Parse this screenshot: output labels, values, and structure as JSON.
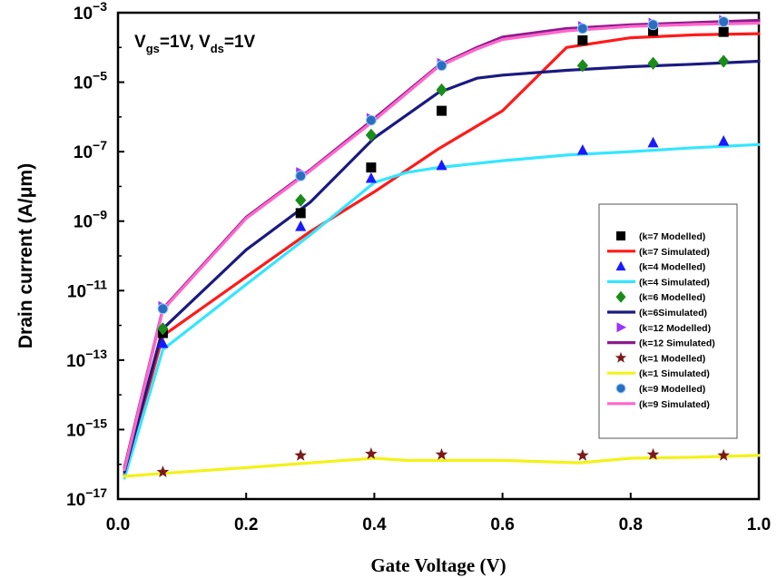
{
  "chart_data": {
    "type": "line",
    "annotation": {
      "part1": "V",
      "sub1": "gs",
      "part2": "=1V, V",
      "sub2": "ds",
      "part3": "=1V"
    },
    "xlabel": "Gate Voltage (V)",
    "ylabel": "Drain current (A/μm)",
    "xlim": [
      0.0,
      1.0
    ],
    "ylim_log10": [
      -17,
      -3
    ],
    "y_scale": "log",
    "x_ticks": [
      "0.0",
      "0.2",
      "0.4",
      "0.6",
      "0.8",
      "1.0"
    ],
    "y_ticks": [
      {
        "base": "10",
        "exp": "−3",
        "log": -3
      },
      {
        "base": "10",
        "exp": "−5",
        "log": -5
      },
      {
        "base": "10",
        "exp": "−7",
        "log": -7
      },
      {
        "base": "10",
        "exp": "−9",
        "log": -9
      },
      {
        "base": "10",
        "exp": "−11",
        "log": -11
      },
      {
        "base": "10",
        "exp": "−13",
        "log": -13
      },
      {
        "base": "10",
        "exp": "−15",
        "log": -15
      },
      {
        "base": "10",
        "exp": "−17",
        "log": -17
      }
    ],
    "legend_position": "right",
    "series": [
      {
        "name": "(k=7 Modelled)",
        "kind": "marker",
        "marker": "square",
        "color": "#000000",
        "x": [
          0.07,
          0.285,
          0.395,
          0.505,
          0.725,
          0.835,
          0.945
        ],
        "y": [
          6e-13,
          1.7e-09,
          3.5e-08,
          1.5e-06,
          0.00016,
          0.0003,
          0.00028
        ]
      },
      {
        "name": "(k=7 Simulated)",
        "kind": "line",
        "color": "#ff1a1a",
        "x": [
          0.01,
          0.07,
          0.2,
          0.3,
          0.4,
          0.5,
          0.6,
          0.7,
          0.8,
          0.9,
          1.0
        ],
        "y": [
          5e-17,
          5e-13,
          2.5e-11,
          5e-10,
          7e-09,
          1.2e-07,
          1.5e-06,
          0.0001,
          0.00019,
          0.00023,
          0.00025
        ]
      },
      {
        "name": "(k=4 Modelled)",
        "kind": "marker",
        "marker": "triangle",
        "color": "#1a1aff",
        "x": [
          0.07,
          0.285,
          0.395,
          0.505,
          0.725,
          0.835,
          0.945
        ],
        "y": [
          3e-13,
          7e-10,
          1.7e-08,
          4e-08,
          1.1e-07,
          1.8e-07,
          2e-07
        ]
      },
      {
        "name": "(k=4 Simulated)",
        "kind": "line",
        "color": "#33e6ff",
        "x": [
          0.01,
          0.07,
          0.2,
          0.3,
          0.4,
          0.45,
          0.5,
          0.6,
          0.7,
          0.8,
          0.9,
          1.0
        ],
        "y": [
          4e-17,
          2e-13,
          1.5e-11,
          4e-10,
          1.3e-08,
          2.5e-08,
          3.5e-08,
          5.5e-08,
          8e-08,
          1e-07,
          1.3e-07,
          1.6e-07
        ]
      },
      {
        "name": "(k=6 Modelled)",
        "kind": "marker",
        "marker": "diamond",
        "color": "#1a8c1a",
        "x": [
          0.07,
          0.285,
          0.395,
          0.505,
          0.725,
          0.835,
          0.945
        ],
        "y": [
          8e-13,
          4e-09,
          3e-07,
          6e-06,
          3e-05,
          3.5e-05,
          4e-05
        ]
      },
      {
        "name": "(k=6Simulated)",
        "kind": "line",
        "color": "#1a1a80",
        "x": [
          0.01,
          0.07,
          0.2,
          0.3,
          0.4,
          0.5,
          0.56,
          0.6,
          0.7,
          0.8,
          0.9,
          1.0
        ],
        "y": [
          6e-17,
          8e-13,
          1.5e-10,
          3.5e-09,
          2.5e-07,
          5e-06,
          1.3e-05,
          1.6e-05,
          2.2e-05,
          2.8e-05,
          3.3e-05,
          4e-05
        ]
      },
      {
        "name": "(k=12 Modelled)",
        "kind": "marker",
        "marker": "triangle-right",
        "color": "#9933ff",
        "x": [
          0.07,
          0.285,
          0.395,
          0.505,
          0.725,
          0.835,
          0.945
        ],
        "y": [
          3.5e-12,
          2.5e-08,
          9e-07,
          3.5e-05,
          0.0004,
          0.0005,
          0.0006
        ]
      },
      {
        "name": "(k=12 Simulated)",
        "kind": "line",
        "color": "#8c1a8c",
        "x": [
          0.01,
          0.07,
          0.2,
          0.3,
          0.4,
          0.5,
          0.56,
          0.6,
          0.7,
          0.8,
          0.9,
          1.0
        ],
        "y": [
          8e-17,
          3e-12,
          1.3e-09,
          3e-08,
          9e-07,
          3e-05,
          0.0001,
          0.0002,
          0.00035,
          0.00045,
          0.00052,
          0.0006
        ]
      },
      {
        "name": "(k=1 Modelled)",
        "kind": "marker",
        "marker": "star",
        "color": "#7a1a1a",
        "x": [
          0.07,
          0.285,
          0.395,
          0.505,
          0.725,
          0.835,
          0.945
        ],
        "y": [
          6e-17,
          1.8e-16,
          2e-16,
          1.9e-16,
          1.8e-16,
          1.9e-16,
          1.8e-16
        ]
      },
      {
        "name": "(k=1 Simulated)",
        "kind": "line",
        "color": "#f2f21a",
        "x": [
          0.01,
          0.07,
          0.2,
          0.3,
          0.4,
          0.45,
          0.6,
          0.72,
          0.8,
          0.9,
          1.0
        ],
        "y": [
          4.5e-17,
          5.5e-17,
          8e-17,
          1.1e-16,
          1.5e-16,
          1.3e-16,
          1.3e-16,
          1.1e-16,
          1.5e-16,
          1.6e-16,
          1.8e-16
        ]
      },
      {
        "name": "(k=9 Modelled)",
        "kind": "marker",
        "marker": "circle",
        "color": "#2a6fbf",
        "x": [
          0.07,
          0.285,
          0.395,
          0.505,
          0.725,
          0.835,
          0.945
        ],
        "y": [
          3e-12,
          2e-08,
          8e-07,
          3e-05,
          0.00035,
          0.00045,
          0.00055
        ]
      },
      {
        "name": "(k=9 Simulated)",
        "kind": "line",
        "color": "#ff66cc",
        "x": [
          0.01,
          0.07,
          0.2,
          0.3,
          0.4,
          0.5,
          0.56,
          0.6,
          0.7,
          0.8,
          0.9,
          1.0
        ],
        "y": [
          7e-17,
          2.8e-12,
          1.2e-09,
          2.8e-08,
          8e-07,
          2.8e-05,
          9e-05,
          0.00017,
          0.0003,
          0.0004,
          0.00046,
          0.0005
        ]
      }
    ]
  }
}
